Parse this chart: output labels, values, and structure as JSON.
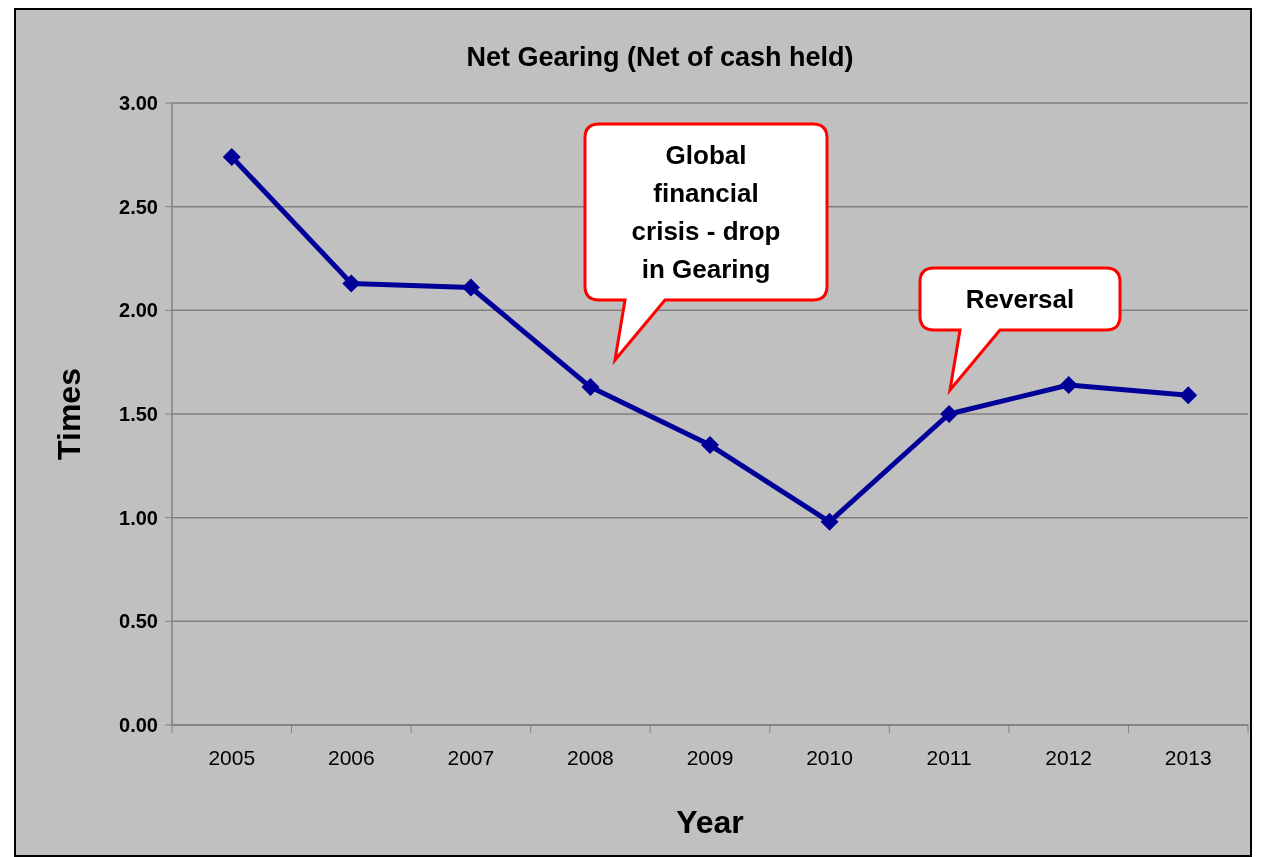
{
  "chart_data": {
    "type": "line",
    "title": "Net Gearing (Net of cash held)",
    "xlabel": "Year",
    "ylabel": "Times",
    "categories": [
      "2005",
      "2006",
      "2007",
      "2008",
      "2009",
      "2010",
      "2011",
      "2012",
      "2013"
    ],
    "series": [
      {
        "color": "#000099",
        "values": [
          2.74,
          2.13,
          2.11,
          1.63,
          1.35,
          0.98,
          1.5,
          1.64,
          1.59
        ]
      }
    ],
    "ylim": [
      0,
      3
    ],
    "yticks": [
      {
        "value": 0,
        "label": "0.00"
      },
      {
        "value": 0.5,
        "label": "0.50"
      },
      {
        "value": 1,
        "label": "1.00"
      },
      {
        "value": 1.5,
        "label": "1.50"
      },
      {
        "value": 2,
        "label": "2.00"
      },
      {
        "value": 2.5,
        "label": "2.50"
      },
      {
        "value": 3,
        "label": "3.00"
      }
    ],
    "grid": "y",
    "marker": "diamond",
    "line_style": "solid",
    "annotations": [
      "Global financial crisis - drop in Gearing",
      "Reversal"
    ]
  }
}
